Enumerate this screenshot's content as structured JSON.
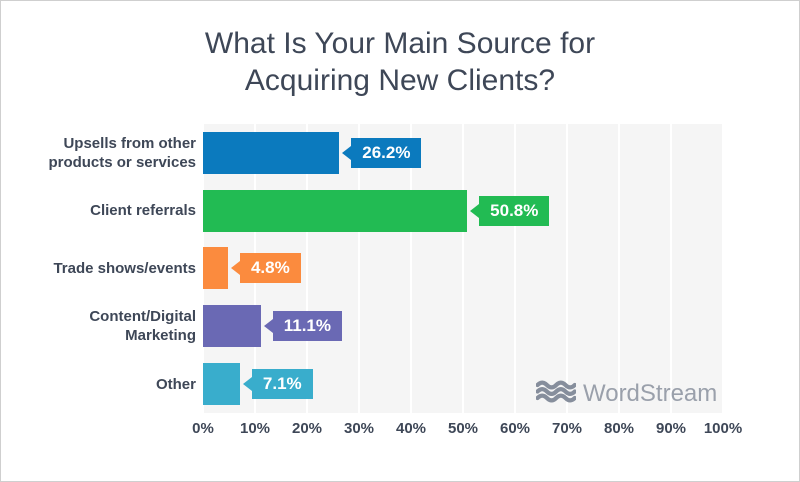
{
  "title": {
    "line1": "What Is Your Main Source for",
    "line2": "Acquiring New Clients?"
  },
  "chart_data": {
    "type": "bar",
    "orientation": "horizontal",
    "title": "What Is Your Main Source for Acquiring New Clients?",
    "categories": [
      "Upsells from other products or services",
      "Client referrals",
      "Trade shows/events",
      "Content/Digital Marketing",
      "Other"
    ],
    "category_lines": [
      [
        "Upsells from other",
        "products or services"
      ],
      [
        "Client referrals"
      ],
      [
        "Trade shows/events"
      ],
      [
        "Content/Digital",
        "Marketing"
      ],
      [
        "Other"
      ]
    ],
    "values": [
      26.2,
      50.8,
      4.8,
      11.1,
      7.1
    ],
    "value_labels": [
      "26.2%",
      "50.8%",
      "4.8%",
      "11.1%",
      "7.1%"
    ],
    "bar_colors": [
      "#0B7ABE",
      "#22BB53",
      "#FB8B3E",
      "#6A69B4",
      "#39ADCC"
    ],
    "xlim": [
      0,
      100
    ],
    "x_ticks": [
      "0%",
      "10%",
      "20%",
      "30%",
      "40%",
      "50%",
      "60%",
      "70%",
      "80%",
      "90%",
      "100%"
    ],
    "grid": true,
    "legend": false
  },
  "watermark": {
    "brand": "WordStream",
    "icon": "waves-icon"
  },
  "colors": {
    "title_text": "#3E4757",
    "plot_bg": "#F5F5F5",
    "gridline": "#FFFFFF",
    "logo_icon": "#868E9C",
    "logo_text": "#9AA0AB"
  }
}
